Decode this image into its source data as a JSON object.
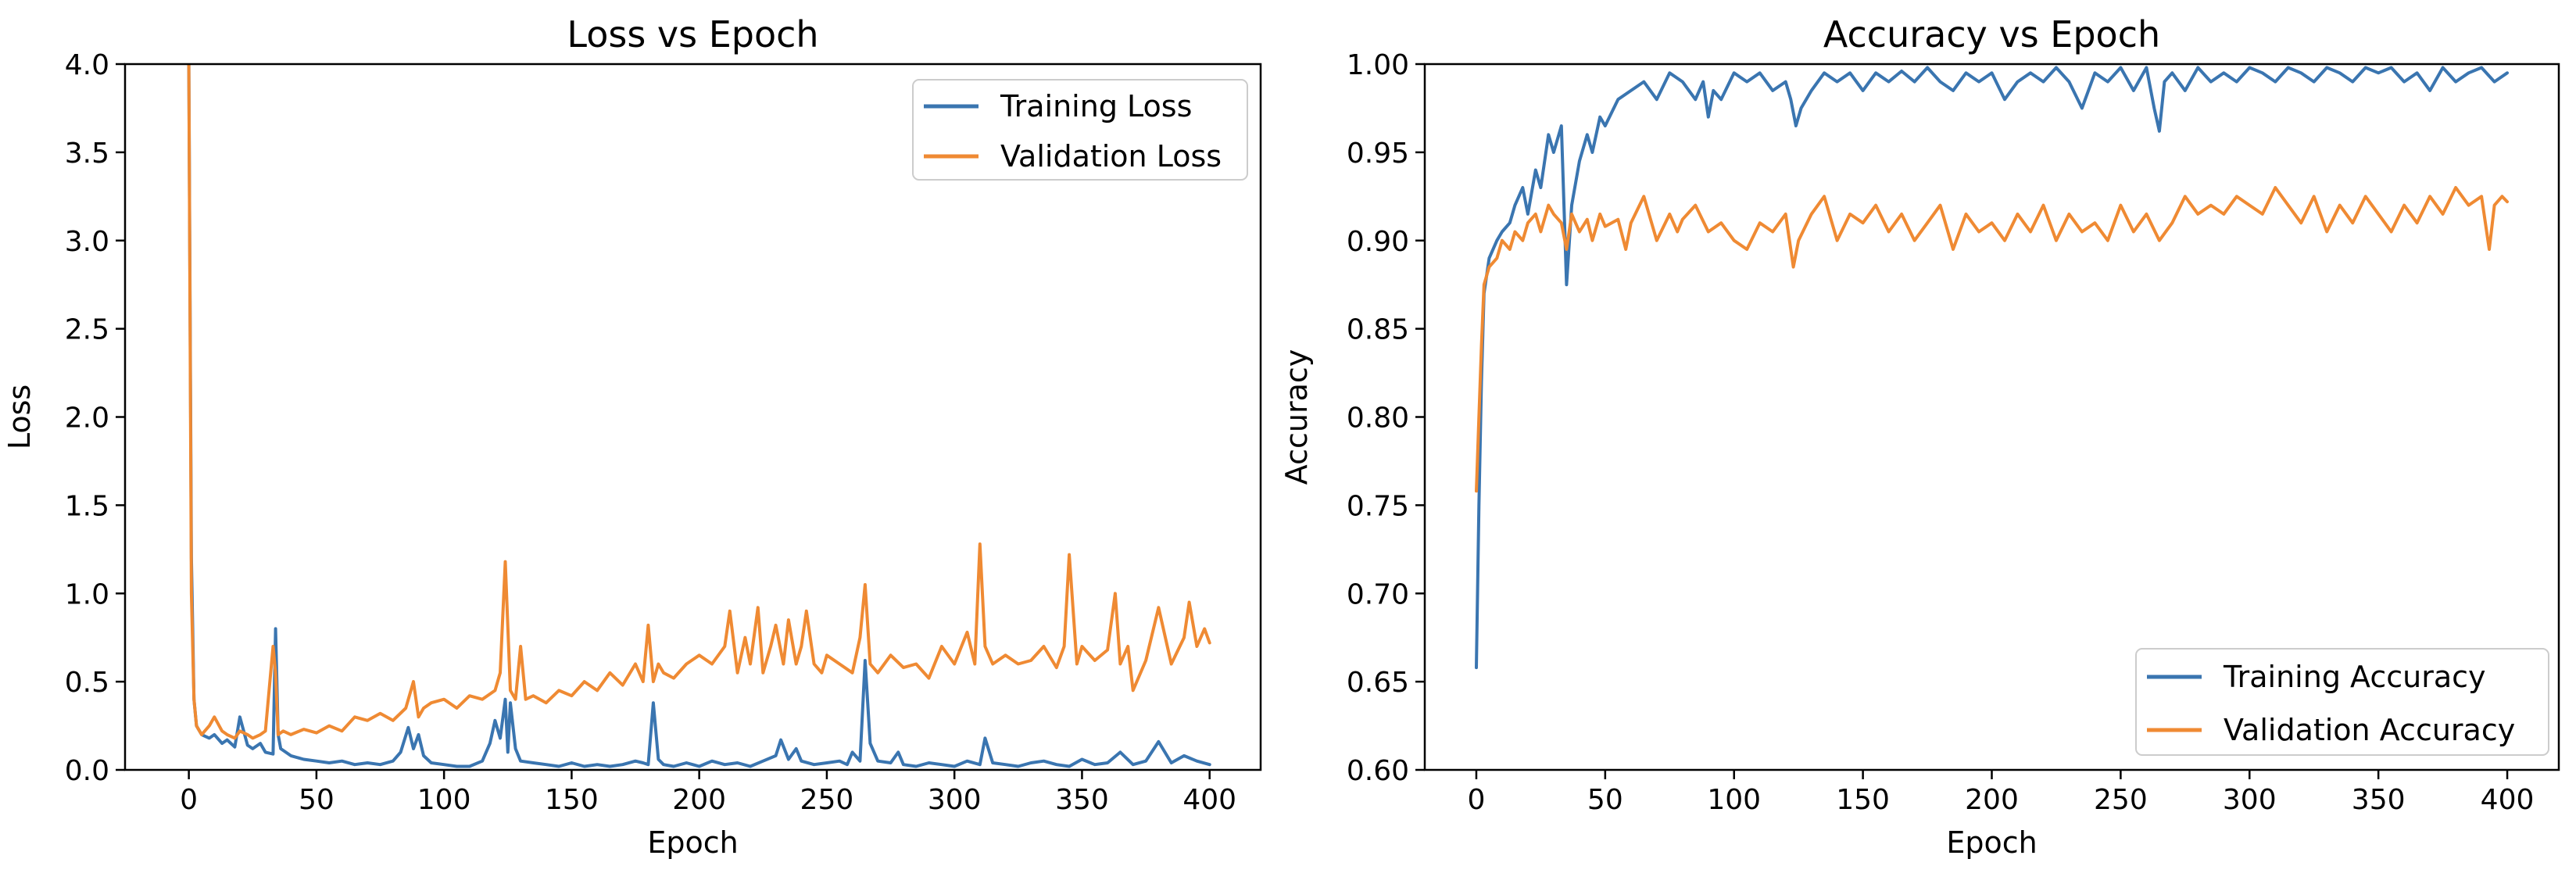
{
  "colors": {
    "training": "#3a75b0",
    "validation": "#ef8a33"
  },
  "chart_data": [
    {
      "type": "line",
      "title": "Loss vs Epoch",
      "xlabel": "Epoch",
      "ylabel": "Loss",
      "xlim": [
        -25,
        420
      ],
      "ylim": [
        0.0,
        4.0
      ],
      "xticks": [
        0,
        50,
        100,
        150,
        200,
        250,
        300,
        350,
        400
      ],
      "xtick_labels": [
        "0",
        "50",
        "100",
        "150",
        "200",
        "250",
        "300",
        "350",
        "400"
      ],
      "yticks": [
        0.0,
        0.5,
        1.0,
        1.5,
        2.0,
        2.5,
        3.0,
        3.5,
        4.0
      ],
      "ytick_labels": [
        "0.0",
        "0.5",
        "1.0",
        "1.5",
        "2.0",
        "2.5",
        "3.0",
        "3.5",
        "4.0"
      ],
      "legend_position": "top-right",
      "series": [
        {
          "name": "Training Loss",
          "color_key": "training",
          "x": [
            0,
            1,
            2,
            3,
            5,
            8,
            10,
            13,
            15,
            18,
            20,
            23,
            25,
            28,
            30,
            33,
            34,
            35,
            36,
            38,
            40,
            45,
            50,
            55,
            60,
            65,
            70,
            75,
            80,
            83,
            86,
            88,
            90,
            92,
            95,
            100,
            105,
            110,
            115,
            118,
            120,
            122,
            124,
            125,
            126,
            128,
            130,
            135,
            140,
            145,
            150,
            155,
            160,
            165,
            170,
            175,
            178,
            180,
            182,
            184,
            186,
            190,
            195,
            200,
            205,
            210,
            215,
            220,
            225,
            230,
            232,
            235,
            238,
            240,
            245,
            250,
            255,
            258,
            260,
            263,
            265,
            267,
            270,
            275,
            278,
            280,
            285,
            290,
            295,
            300,
            305,
            310,
            312,
            315,
            320,
            325,
            330,
            335,
            340,
            345,
            350,
            355,
            360,
            365,
            370,
            375,
            380,
            385,
            390,
            395,
            400
          ],
          "y": [
            4.0,
            1.2,
            0.4,
            0.25,
            0.2,
            0.18,
            0.2,
            0.15,
            0.17,
            0.13,
            0.3,
            0.14,
            0.12,
            0.15,
            0.1,
            0.09,
            0.8,
            0.2,
            0.12,
            0.1,
            0.08,
            0.06,
            0.05,
            0.04,
            0.05,
            0.03,
            0.04,
            0.03,
            0.05,
            0.1,
            0.24,
            0.12,
            0.2,
            0.08,
            0.04,
            0.03,
            0.02,
            0.02,
            0.05,
            0.15,
            0.28,
            0.18,
            0.4,
            0.1,
            0.38,
            0.12,
            0.05,
            0.04,
            0.03,
            0.02,
            0.04,
            0.02,
            0.03,
            0.02,
            0.03,
            0.05,
            0.04,
            0.03,
            0.38,
            0.06,
            0.03,
            0.02,
            0.04,
            0.02,
            0.05,
            0.03,
            0.04,
            0.02,
            0.05,
            0.08,
            0.17,
            0.06,
            0.12,
            0.05,
            0.03,
            0.04,
            0.05,
            0.03,
            0.1,
            0.05,
            0.62,
            0.15,
            0.05,
            0.04,
            0.1,
            0.03,
            0.02,
            0.04,
            0.03,
            0.02,
            0.05,
            0.03,
            0.18,
            0.04,
            0.03,
            0.02,
            0.04,
            0.05,
            0.03,
            0.02,
            0.06,
            0.03,
            0.04,
            0.1,
            0.03,
            0.05,
            0.16,
            0.04,
            0.08,
            0.05,
            0.03
          ]
        },
        {
          "name": "Validation Loss",
          "color_key": "validation",
          "x": [
            0,
            1,
            2,
            3,
            5,
            8,
            10,
            13,
            15,
            18,
            20,
            23,
            25,
            28,
            30,
            33,
            34,
            35,
            37,
            40,
            45,
            50,
            55,
            60,
            65,
            70,
            75,
            80,
            85,
            88,
            90,
            92,
            95,
            100,
            105,
            110,
            115,
            120,
            122,
            124,
            126,
            128,
            130,
            132,
            135,
            140,
            145,
            150,
            155,
            160,
            165,
            170,
            175,
            178,
            180,
            182,
            184,
            186,
            190,
            195,
            200,
            205,
            210,
            212,
            215,
            218,
            220,
            223,
            225,
            228,
            230,
            233,
            235,
            238,
            240,
            242,
            245,
            248,
            250,
            255,
            260,
            263,
            265,
            267,
            270,
            275,
            280,
            285,
            290,
            295,
            300,
            305,
            308,
            310,
            312,
            315,
            320,
            325,
            330,
            335,
            340,
            343,
            345,
            348,
            350,
            355,
            360,
            363,
            365,
            368,
            370,
            375,
            380,
            385,
            390,
            392,
            395,
            398,
            400
          ],
          "y": [
            4.0,
            1.0,
            0.4,
            0.25,
            0.2,
            0.25,
            0.3,
            0.22,
            0.2,
            0.18,
            0.22,
            0.2,
            0.18,
            0.2,
            0.22,
            0.7,
            0.55,
            0.2,
            0.22,
            0.2,
            0.23,
            0.21,
            0.25,
            0.22,
            0.3,
            0.28,
            0.32,
            0.28,
            0.35,
            0.5,
            0.3,
            0.35,
            0.38,
            0.4,
            0.35,
            0.42,
            0.4,
            0.45,
            0.55,
            1.18,
            0.45,
            0.4,
            0.7,
            0.4,
            0.42,
            0.38,
            0.45,
            0.42,
            0.5,
            0.45,
            0.55,
            0.48,
            0.6,
            0.5,
            0.82,
            0.5,
            0.6,
            0.55,
            0.52,
            0.6,
            0.65,
            0.6,
            0.7,
            0.9,
            0.55,
            0.75,
            0.6,
            0.92,
            0.55,
            0.7,
            0.82,
            0.6,
            0.85,
            0.6,
            0.7,
            0.9,
            0.6,
            0.55,
            0.65,
            0.6,
            0.55,
            0.75,
            1.05,
            0.6,
            0.55,
            0.65,
            0.58,
            0.6,
            0.52,
            0.7,
            0.6,
            0.78,
            0.6,
            1.28,
            0.7,
            0.6,
            0.65,
            0.6,
            0.62,
            0.7,
            0.58,
            0.7,
            1.22,
            0.6,
            0.7,
            0.62,
            0.68,
            1.0,
            0.6,
            0.7,
            0.45,
            0.62,
            0.92,
            0.6,
            0.75,
            0.95,
            0.7,
            0.8,
            0.72
          ]
        }
      ]
    },
    {
      "type": "line",
      "title": "Accuracy vs Epoch",
      "xlabel": "Epoch",
      "ylabel": "Accuracy",
      "xlim": [
        -20,
        420
      ],
      "ylim": [
        0.6,
        1.0
      ],
      "xticks": [
        0,
        50,
        100,
        150,
        200,
        250,
        300,
        350,
        400
      ],
      "xtick_labels": [
        "0",
        "50",
        "100",
        "150",
        "200",
        "250",
        "300",
        "350",
        "400"
      ],
      "yticks": [
        0.6,
        0.65,
        0.7,
        0.75,
        0.8,
        0.85,
        0.9,
        0.95,
        1.0
      ],
      "ytick_labels": [
        "0.60",
        "0.65",
        "0.70",
        "0.75",
        "0.80",
        "0.85",
        "0.90",
        "0.95",
        "1.00"
      ],
      "legend_position": "bottom-right",
      "series": [
        {
          "name": "Training Accuracy",
          "color_key": "training",
          "x": [
            0,
            1,
            2,
            3,
            5,
            8,
            10,
            13,
            15,
            18,
            20,
            23,
            25,
            28,
            30,
            33,
            35,
            37,
            40,
            43,
            45,
            48,
            50,
            55,
            60,
            65,
            70,
            75,
            80,
            85,
            88,
            90,
            92,
            95,
            100,
            105,
            110,
            115,
            120,
            122,
            124,
            126,
            130,
            135,
            140,
            145,
            150,
            155,
            160,
            165,
            170,
            175,
            180,
            185,
            190,
            195,
            200,
            205,
            210,
            215,
            220,
            225,
            230,
            235,
            240,
            245,
            250,
            255,
            260,
            263,
            265,
            267,
            270,
            275,
            280,
            285,
            290,
            295,
            300,
            305,
            310,
            315,
            320,
            325,
            330,
            335,
            340,
            345,
            350,
            355,
            360,
            365,
            370,
            375,
            380,
            385,
            390,
            395,
            400
          ],
          "y": [
            0.658,
            0.75,
            0.82,
            0.87,
            0.89,
            0.9,
            0.905,
            0.91,
            0.92,
            0.93,
            0.915,
            0.94,
            0.93,
            0.96,
            0.95,
            0.965,
            0.875,
            0.92,
            0.945,
            0.96,
            0.95,
            0.97,
            0.965,
            0.98,
            0.985,
            0.99,
            0.98,
            0.995,
            0.99,
            0.98,
            0.99,
            0.97,
            0.985,
            0.98,
            0.995,
            0.99,
            0.995,
            0.985,
            0.99,
            0.98,
            0.965,
            0.975,
            0.985,
            0.995,
            0.99,
            0.995,
            0.985,
            0.995,
            0.99,
            0.996,
            0.99,
            0.998,
            0.99,
            0.985,
            0.995,
            0.99,
            0.995,
            0.98,
            0.99,
            0.995,
            0.99,
            0.998,
            0.99,
            0.975,
            0.995,
            0.99,
            0.998,
            0.985,
            0.998,
            0.975,
            0.962,
            0.99,
            0.995,
            0.985,
            0.998,
            0.99,
            0.995,
            0.99,
            0.998,
            0.995,
            0.99,
            0.998,
            0.995,
            0.99,
            0.998,
            0.995,
            0.99,
            0.998,
            0.995,
            0.998,
            0.99,
            0.995,
            0.985,
            0.998,
            0.99,
            0.995,
            0.998,
            0.99,
            0.995
          ]
        },
        {
          "name": "Validation Accuracy",
          "color_key": "validation",
          "x": [
            0,
            1,
            2,
            3,
            5,
            8,
            10,
            13,
            15,
            18,
            20,
            23,
            25,
            28,
            30,
            33,
            35,
            37,
            40,
            43,
            45,
            48,
            50,
            55,
            58,
            60,
            65,
            70,
            75,
            78,
            80,
            85,
            90,
            95,
            100,
            105,
            110,
            115,
            120,
            123,
            125,
            130,
            135,
            140,
            145,
            150,
            155,
            160,
            165,
            170,
            175,
            180,
            185,
            190,
            195,
            200,
            205,
            210,
            215,
            220,
            225,
            230,
            235,
            240,
            245,
            250,
            255,
            260,
            265,
            270,
            275,
            280,
            285,
            290,
            295,
            300,
            305,
            310,
            315,
            320,
            325,
            330,
            335,
            340,
            345,
            350,
            355,
            360,
            365,
            370,
            375,
            380,
            385,
            390,
            393,
            395,
            398,
            400
          ],
          "y": [
            0.758,
            0.8,
            0.84,
            0.875,
            0.885,
            0.89,
            0.9,
            0.895,
            0.905,
            0.9,
            0.91,
            0.915,
            0.905,
            0.92,
            0.915,
            0.91,
            0.895,
            0.915,
            0.905,
            0.912,
            0.9,
            0.915,
            0.908,
            0.912,
            0.895,
            0.91,
            0.925,
            0.9,
            0.915,
            0.905,
            0.912,
            0.92,
            0.905,
            0.91,
            0.9,
            0.895,
            0.91,
            0.905,
            0.915,
            0.885,
            0.9,
            0.915,
            0.925,
            0.9,
            0.915,
            0.91,
            0.92,
            0.905,
            0.915,
            0.9,
            0.91,
            0.92,
            0.895,
            0.915,
            0.905,
            0.91,
            0.9,
            0.915,
            0.905,
            0.92,
            0.9,
            0.915,
            0.905,
            0.91,
            0.9,
            0.92,
            0.905,
            0.915,
            0.9,
            0.91,
            0.925,
            0.915,
            0.92,
            0.915,
            0.925,
            0.92,
            0.915,
            0.93,
            0.92,
            0.91,
            0.925,
            0.905,
            0.92,
            0.91,
            0.925,
            0.915,
            0.905,
            0.92,
            0.91,
            0.925,
            0.915,
            0.93,
            0.92,
            0.925,
            0.895,
            0.92,
            0.925,
            0.922
          ]
        }
      ]
    }
  ]
}
